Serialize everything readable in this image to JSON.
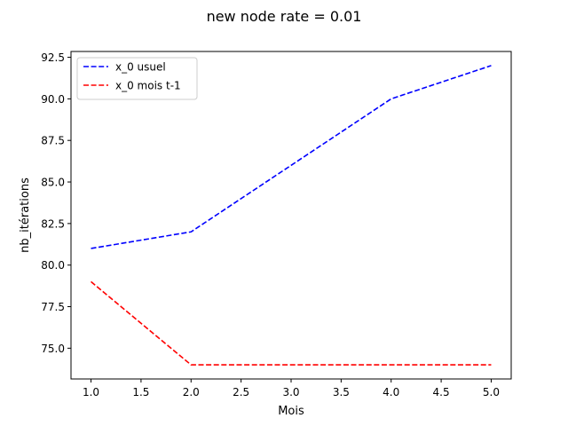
{
  "chart_data": {
    "type": "line",
    "title": "new node rate = 0.01",
    "xlabel": "Mois",
    "ylabel": "nb_itérations",
    "xlim": [
      0.8,
      5.2
    ],
    "ylim": [
      73.15,
      92.85
    ],
    "xticks": [
      1.0,
      1.5,
      2.0,
      2.5,
      3.0,
      3.5,
      4.0,
      4.5,
      5.0
    ],
    "xtick_labels": [
      "1.0",
      "1.5",
      "2.0",
      "2.5",
      "3.0",
      "3.5",
      "4.0",
      "4.5",
      "5.0"
    ],
    "yticks": [
      75.0,
      77.5,
      80.0,
      82.5,
      85.0,
      87.5,
      90.0,
      92.5
    ],
    "ytick_labels": [
      "75.0",
      "77.5",
      "80.0",
      "82.5",
      "85.0",
      "87.5",
      "90.0",
      "92.5"
    ],
    "grid": false,
    "legend_position": "upper left",
    "x": [
      1,
      2,
      3,
      4,
      5
    ],
    "series": [
      {
        "name": "x_0 usuel",
        "values": [
          81,
          82,
          86,
          90,
          92
        ],
        "color": "#0000ff",
        "style": "dashed"
      },
      {
        "name": "x_0 mois t-1",
        "values": [
          79,
          74,
          74,
          74,
          74
        ],
        "color": "#ff0000",
        "style": "dashed"
      }
    ]
  }
}
